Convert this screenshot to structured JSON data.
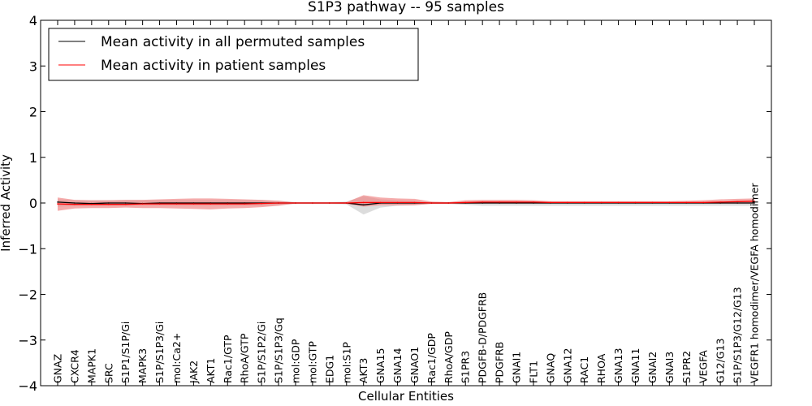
{
  "chart_data": {
    "type": "line",
    "title": "S1P3 pathway -- 95 samples",
    "xlabel": "Cellular Entities",
    "ylabel": "Inferred Activity",
    "ylim": [
      -4,
      4
    ],
    "yticks": [
      -4,
      -3,
      -2,
      -1,
      0,
      1,
      2,
      3,
      4
    ],
    "ytick_labels": [
      "−4",
      "−3",
      "−2",
      "−1",
      "0",
      "1",
      "2",
      "3",
      "4"
    ],
    "grid": false,
    "legend_position": "top-left",
    "categories": [
      "GNAZ",
      "CXCR4",
      "MAPK1",
      "SRC",
      "S1P1/S1P/Gi",
      "MAPK3",
      "S1P/S1P3/Gi",
      "mol:Ca2+",
      "JAK2",
      "AKT1",
      "Rac1/GTP",
      "RhoA/GTP",
      "S1P/S1P2/Gi",
      "S1P/S1P3/Gq",
      "mol:GDP",
      "mol:GTP",
      "EDG1",
      "mol:S1P",
      "AKT3",
      "GNA15",
      "GNA14",
      "GNAO1",
      "Rac1/GDP",
      "RhoA/GDP",
      "S1PR3",
      "PDGFB-D/PDGFRB",
      "PDGFRB",
      "GNAI1",
      "FLT1",
      "GNAQ",
      "GNA12",
      "RAC1",
      "RHOA",
      "GNA13",
      "GNA11",
      "GNAI2",
      "GNAI3",
      "S1PR2",
      "VEGFA",
      "G12/G13",
      "S1P/S1P3/G12/G13",
      "VEGFR1 homodimer/VEGFA homodimer"
    ],
    "series": [
      {
        "name": "Mean activity in all permuted samples",
        "color": "#000000",
        "band_color": "#d8d8d8",
        "values": [
          0.02,
          0.0,
          -0.01,
          0.0,
          0.0,
          -0.01,
          0.0,
          0.0,
          0.0,
          0.0,
          0.0,
          0.0,
          0.0,
          0.0,
          0.0,
          0.0,
          0.0,
          0.0,
          -0.04,
          0.0,
          0.0,
          0.0,
          0.0,
          0.0,
          0.0,
          0.0,
          0.0,
          0.0,
          0.0,
          0.0,
          0.0,
          0.0,
          0.0,
          0.0,
          0.0,
          0.0,
          0.0,
          0.0,
          0.0,
          0.0,
          0.0,
          0.0
        ],
        "band_upper": [
          0.08,
          0.06,
          0.06,
          0.06,
          0.06,
          0.06,
          0.06,
          0.06,
          0.06,
          0.06,
          0.06,
          0.06,
          0.06,
          0.05,
          0.02,
          0.02,
          0.02,
          0.03,
          0.15,
          0.08,
          0.06,
          0.05,
          0.02,
          0.02,
          0.03,
          0.03,
          0.03,
          0.03,
          0.03,
          0.03,
          0.03,
          0.03,
          0.03,
          0.03,
          0.03,
          0.03,
          0.03,
          0.03,
          0.03,
          0.03,
          0.03,
          0.03
        ],
        "band_lower": [
          -0.08,
          -0.06,
          -0.06,
          -0.06,
          -0.06,
          -0.06,
          -0.06,
          -0.06,
          -0.06,
          -0.06,
          -0.06,
          -0.06,
          -0.06,
          -0.05,
          -0.02,
          -0.02,
          -0.02,
          -0.03,
          -0.25,
          -0.1,
          -0.06,
          -0.05,
          -0.02,
          -0.02,
          -0.04,
          -0.06,
          -0.06,
          -0.06,
          -0.06,
          -0.06,
          -0.06,
          -0.06,
          -0.06,
          -0.06,
          -0.06,
          -0.06,
          -0.06,
          -0.06,
          -0.06,
          -0.06,
          -0.06,
          -0.06
        ]
      },
      {
        "name": "Mean activity in patient samples",
        "color": "#ff0000",
        "band_color": "#f08080",
        "values": [
          -0.02,
          -0.03,
          -0.03,
          -0.03,
          -0.03,
          -0.02,
          -0.02,
          -0.02,
          -0.02,
          -0.02,
          -0.02,
          -0.02,
          -0.01,
          0.0,
          0.0,
          0.0,
          0.0,
          0.0,
          0.01,
          0.01,
          0.01,
          0.01,
          0.0,
          0.0,
          0.01,
          0.02,
          0.02,
          0.02,
          0.02,
          0.01,
          0.01,
          0.01,
          0.01,
          0.01,
          0.01,
          0.01,
          0.01,
          0.01,
          0.01,
          0.02,
          0.03,
          0.04
        ],
        "band_upper": [
          0.12,
          0.07,
          0.06,
          0.06,
          0.07,
          0.07,
          0.08,
          0.09,
          0.1,
          0.1,
          0.09,
          0.08,
          0.07,
          0.05,
          0.01,
          0.01,
          0.01,
          0.02,
          0.17,
          0.12,
          0.1,
          0.09,
          0.03,
          0.02,
          0.06,
          0.07,
          0.07,
          0.07,
          0.06,
          0.04,
          0.04,
          0.04,
          0.04,
          0.04,
          0.04,
          0.04,
          0.04,
          0.05,
          0.06,
          0.08,
          0.09,
          0.1
        ],
        "band_lower": [
          -0.17,
          -0.12,
          -0.11,
          -0.11,
          -0.1,
          -0.11,
          -0.11,
          -0.12,
          -0.13,
          -0.14,
          -0.12,
          -0.11,
          -0.09,
          -0.06,
          -0.01,
          -0.01,
          -0.01,
          -0.02,
          -0.08,
          -0.05,
          -0.05,
          -0.05,
          -0.02,
          -0.02,
          -0.02,
          -0.01,
          -0.01,
          -0.01,
          -0.01,
          -0.01,
          -0.01,
          -0.01,
          -0.01,
          -0.01,
          -0.01,
          -0.01,
          -0.01,
          -0.01,
          -0.01,
          -0.01,
          -0.01,
          -0.01
        ]
      }
    ]
  }
}
